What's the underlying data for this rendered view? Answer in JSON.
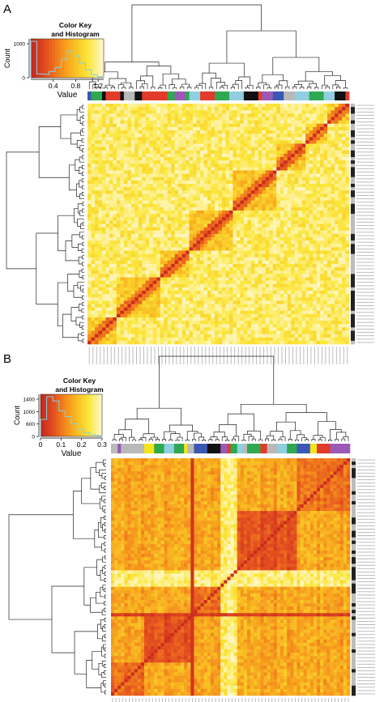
{
  "figure": {
    "panels": [
      "A",
      "B"
    ]
  },
  "colors": {
    "group_palette": [
      "#8ecfe0",
      "#2fa84f",
      "#111111",
      "#3b57b5",
      "#e23b2a",
      "#b9b9b9",
      "#9b59b6",
      "#f5e418"
    ],
    "heat_low": "#c8281e",
    "heat_mid": "#ee8a1c",
    "heat_high": "#fff6c2",
    "side_dark": "#222222",
    "side_light": "#bdbdbd"
  },
  "chart_data": [
    {
      "type": "heatmap",
      "panel_label": "A",
      "n_samples": 72,
      "color_key": {
        "title": "Color Key\nand Histogram",
        "title_lines": [
          "Color Key",
          "and Histogram"
        ],
        "xlabel": "Value",
        "ylabel": "Count",
        "xticks": [
          "0.4",
          "0.8",
          "1.2"
        ],
        "yticks": [
          "0",
          "1000"
        ],
        "value_range": [
          0,
          1.3
        ],
        "gradient": [
          "#c8281e",
          "#e4501f",
          "#f48a1c",
          "#f9be22",
          "#fbe63a",
          "#fff6c2"
        ],
        "histogram": [
          1500,
          160,
          140,
          260,
          420,
          760,
          1100,
          900,
          600,
          320,
          120,
          40
        ]
      },
      "diagonal": "low values (red) along diagonal, block structure of correlated samples",
      "clusters": "hierarchical, dendrograms on rows and columns",
      "side_bar_colors": "column color bar with 8 sample groups",
      "row_color_bar": "black/grey annotation column at right"
    },
    {
      "type": "heatmap",
      "panel_label": "B",
      "n_samples": 72,
      "color_key": {
        "title": "Color Key\nand Histogram",
        "title_lines": [
          "Color Key",
          "and Histogram"
        ],
        "xlabel": "Value",
        "ylabel": "Count",
        "xticks": [
          "0",
          "0.1",
          "0.2",
          "0.3"
        ],
        "yticks": [
          "0",
          "600",
          "1000",
          "1400"
        ],
        "value_range": [
          0,
          0.3
        ],
        "gradient": [
          "#c8281e",
          "#e4501f",
          "#f48a1c",
          "#f9be22",
          "#fbe63a",
          "#fff6c2"
        ],
        "histogram": [
          600,
          1400,
          1250,
          900,
          700,
          450,
          250,
          120,
          60,
          30
        ]
      },
      "diagonal": "low values (red) along diagonal with two large red blocks",
      "clusters": "hierarchical, dendrograms on rows and columns",
      "side_bar_colors": "column color bar with 8 sample groups",
      "row_color_bar": "black/grey annotation column at right"
    }
  ]
}
